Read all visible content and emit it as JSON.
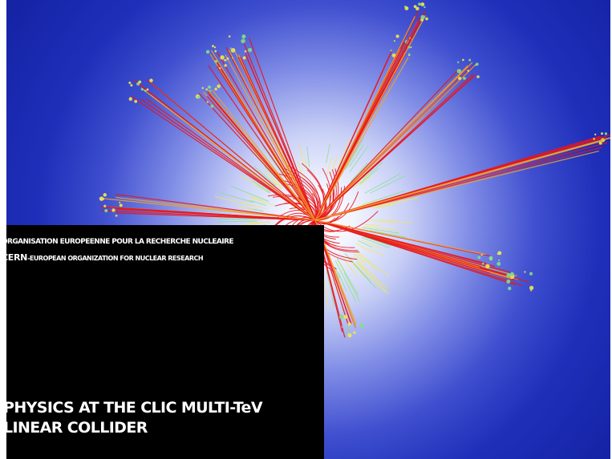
{
  "cover": {
    "organization_fr": "ORGANISATION EUROPEENNE POUR LA RECHERCHE NUCLEAIRE",
    "organization_en_acronym": "CERN",
    "organization_en_rest": "-EUROPEAN ORGANIZATION FOR NUCLEAR RESEARCH",
    "title_line_1": "PHYSICS AT THE CLIC MULTI-TeV",
    "title_line_2": "LINEAR COLLIDER",
    "colors": {
      "background_outer": "#1524a6",
      "background_center": "#ffffff",
      "title_box": "#000000",
      "track_red": "#e8141c",
      "track_yellow": "#f2e94a",
      "track_green": "#7fe08a",
      "track_orange": "#f0a030"
    }
  }
}
